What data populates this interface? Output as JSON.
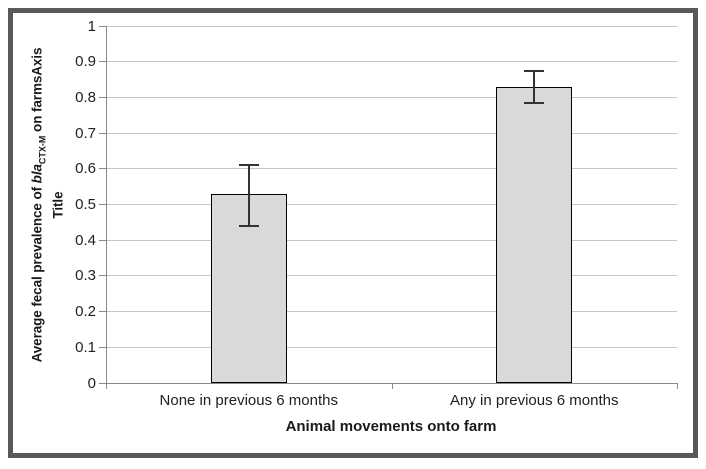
{
  "chart_data": {
    "type": "bar",
    "title": "",
    "categories": [
      "None in previous 6 months",
      "Any in previous 6 months"
    ],
    "values": [
      0.53,
      0.83
    ],
    "error_low": [
      0.44,
      0.785
    ],
    "error_high": [
      0.61,
      0.875
    ],
    "xlabel": "Animal movements onto farm",
    "ylabel": "Average fecal prevalence of blaCTX-M on farmsAxis Title",
    "ylabel_parts": {
      "prefix": "Average fecal prevalence of ",
      "gene": "bla",
      "subscript": "CTX-M",
      "suffix": " on farmsAxis",
      "line2": "Title"
    },
    "ylim": [
      0,
      1
    ],
    "ytick_interval": 0.1,
    "yticks": [
      "0",
      "0.1",
      "0.2",
      "0.3",
      "0.4",
      "0.5",
      "0.6",
      "0.7",
      "0.8",
      "0.9",
      "1"
    ],
    "grid": true,
    "legend": false,
    "bar_style": {
      "fill": "#d9d9d9",
      "border": "#000000"
    },
    "colors": {
      "gridline": "#c6c6c6",
      "axis": "#898989",
      "error_bar": "#333333",
      "frame": "#595959",
      "text": "#212121"
    }
  }
}
